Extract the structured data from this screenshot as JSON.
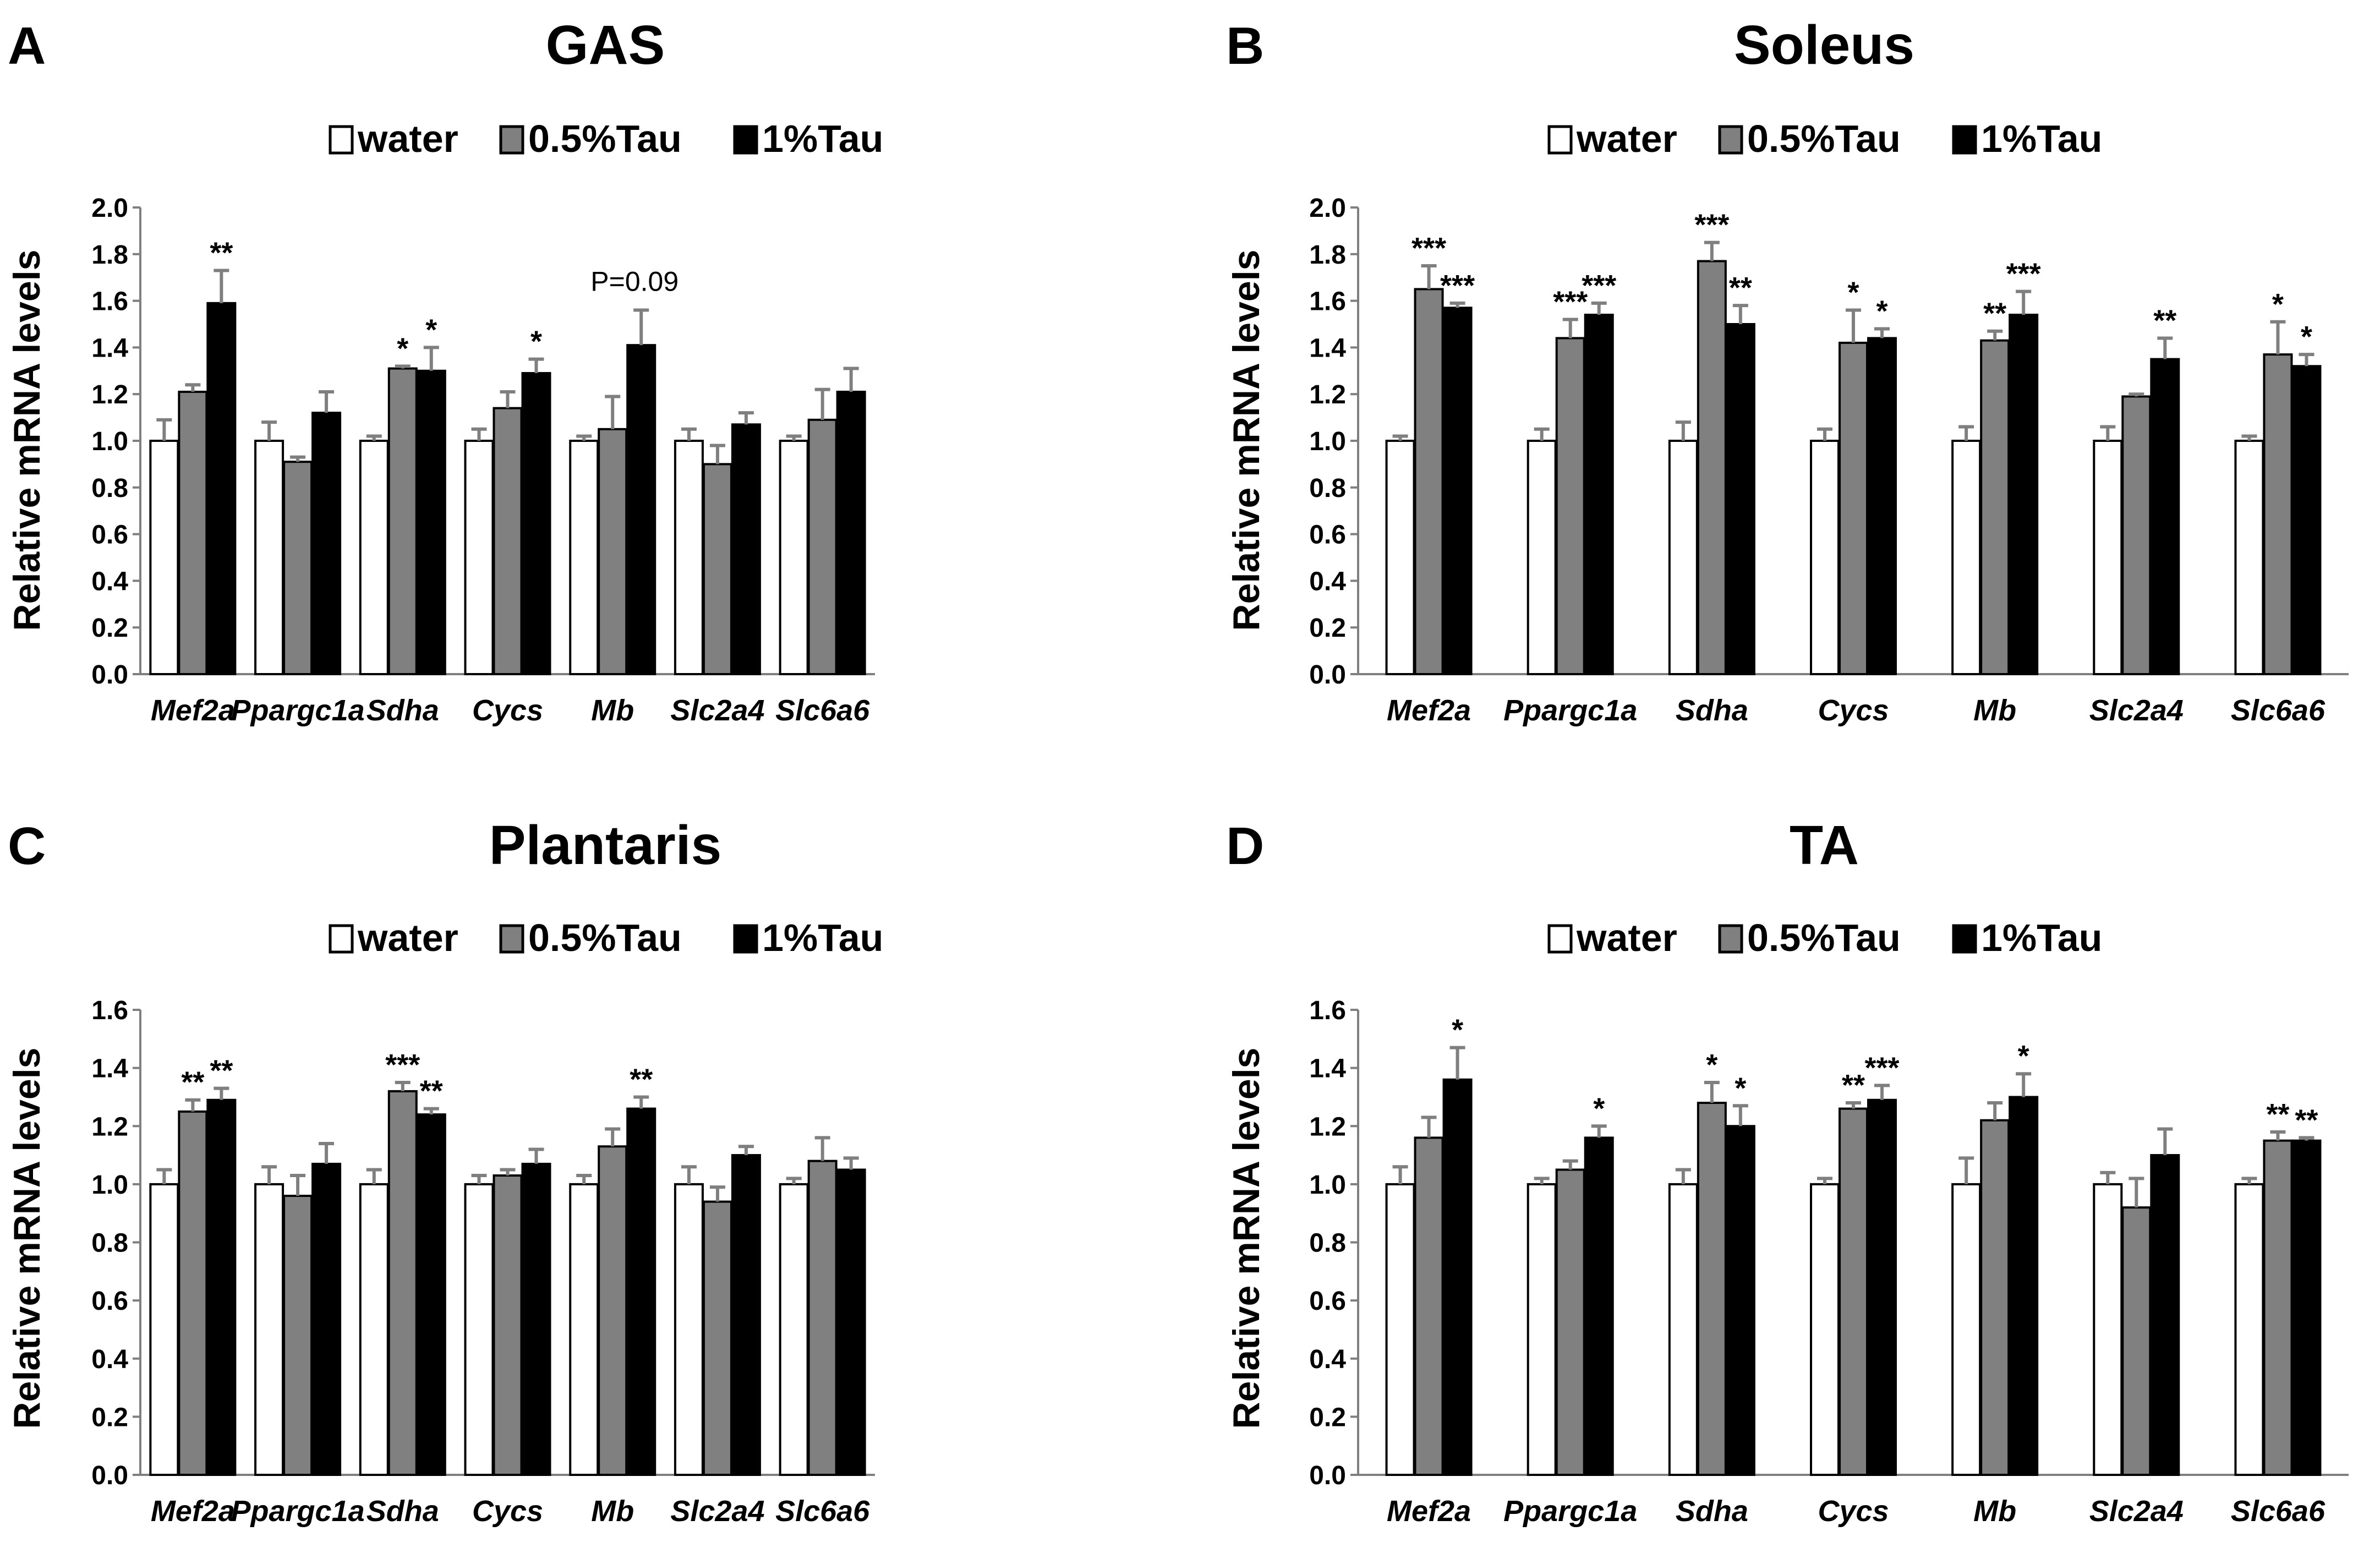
{
  "colors": {
    "water": "#ffffff",
    "tau05": "#808080",
    "tau1": "#000000",
    "errorbar": "#7f7f7f",
    "axis": "#7f7f7f"
  },
  "legend": {
    "water": "water",
    "tau05": "0.5%Tau",
    "tau1": "1%Tau"
  },
  "ylabel": "Relative mRNA levels",
  "chart_data": [
    {
      "type": "bar",
      "letter": "A",
      "title": "GAS",
      "ylabel": "Relative mRNA levels",
      "ylim": [
        0,
        2.0
      ],
      "yticks": [
        "0.0",
        "0.2",
        "0.4",
        "0.6",
        "0.8",
        "1.0",
        "1.2",
        "1.4",
        "1.6",
        "1.8",
        "2.0"
      ],
      "categories": [
        "Mef2a",
        "Ppargc1a",
        "Sdha",
        "Cycs",
        "Mb",
        "Slc2a4",
        "Slc6a6"
      ],
      "series": [
        {
          "name": "water",
          "values": [
            1.0,
            1.0,
            1.0,
            1.0,
            1.0,
            1.0,
            1.0
          ],
          "errors": [
            0.09,
            0.08,
            0.02,
            0.05,
            0.02,
            0.05,
            0.02
          ],
          "sig": [
            "",
            "",
            "",
            "",
            "",
            "",
            ""
          ]
        },
        {
          "name": "0.5%Tau",
          "values": [
            1.21,
            0.91,
            1.31,
            1.14,
            1.05,
            0.9,
            1.09
          ],
          "errors": [
            0.03,
            0.02,
            0.01,
            0.07,
            0.14,
            0.08,
            0.13
          ],
          "sig": [
            "",
            "",
            "*",
            "",
            "",
            "",
            ""
          ]
        },
        {
          "name": "1%Tau",
          "values": [
            1.59,
            1.12,
            1.3,
            1.29,
            1.41,
            1.07,
            1.21
          ],
          "errors": [
            0.14,
            0.09,
            0.1,
            0.06,
            0.15,
            0.05,
            0.1
          ],
          "sig": [
            "**",
            "",
            "*",
            "*",
            "",
            "",
            ""
          ]
        }
      ],
      "notes": [
        {
          "text": "P=0.09",
          "category": "Mb"
        }
      ]
    },
    {
      "type": "bar",
      "letter": "B",
      "title": "Soleus",
      "ylabel": "Relative mRNA levels",
      "ylim": [
        0,
        2.0
      ],
      "yticks": [
        "0.0",
        "0.2",
        "0.4",
        "0.6",
        "0.8",
        "1.0",
        "1.2",
        "1.4",
        "1.6",
        "1.8",
        "2.0"
      ],
      "categories": [
        "Mef2a",
        "Ppargc1a",
        "Sdha",
        "Cycs",
        "Mb",
        "Slc2a4",
        "Slc6a6"
      ],
      "series": [
        {
          "name": "water",
          "values": [
            1.0,
            1.0,
            1.0,
            1.0,
            1.0,
            1.0,
            1.0
          ],
          "errors": [
            0.02,
            0.05,
            0.08,
            0.05,
            0.06,
            0.06,
            0.02
          ],
          "sig": [
            "",
            "",
            "",
            "",
            "",
            "",
            ""
          ]
        },
        {
          "name": "0.5%Tau",
          "values": [
            1.65,
            1.44,
            1.77,
            1.42,
            1.43,
            1.19,
            1.37
          ],
          "errors": [
            0.1,
            0.08,
            0.08,
            0.14,
            0.04,
            0.01,
            0.14
          ],
          "sig": [
            "***",
            "***",
            "***",
            "*",
            "**",
            "",
            "*"
          ]
        },
        {
          "name": "1%Tau",
          "values": [
            1.57,
            1.54,
            1.5,
            1.44,
            1.54,
            1.35,
            1.32
          ],
          "errors": [
            0.02,
            0.05,
            0.08,
            0.04,
            0.1,
            0.09,
            0.05
          ],
          "sig": [
            "***",
            "***",
            "**",
            "*",
            "***",
            "**",
            "*"
          ]
        }
      ],
      "notes": []
    },
    {
      "type": "bar",
      "letter": "C",
      "title": "Plantaris",
      "ylabel": "Relative mRNA levels",
      "ylim": [
        0,
        1.6
      ],
      "yticks": [
        "0.0",
        "0.2",
        "0.4",
        "0.6",
        "0.8",
        "1.0",
        "1.2",
        "1.4",
        "1.6"
      ],
      "categories": [
        "Mef2a",
        "Ppargc1a",
        "Sdha",
        "Cycs",
        "Mb",
        "Slc2a4",
        "Slc6a6"
      ],
      "series": [
        {
          "name": "water",
          "values": [
            1.0,
            1.0,
            1.0,
            1.0,
            1.0,
            1.0,
            1.0
          ],
          "errors": [
            0.05,
            0.06,
            0.05,
            0.03,
            0.03,
            0.06,
            0.02
          ],
          "sig": [
            "",
            "",
            "",
            "",
            "",
            "",
            ""
          ]
        },
        {
          "name": "0.5%Tau",
          "values": [
            1.25,
            0.96,
            1.32,
            1.03,
            1.13,
            0.94,
            1.08
          ],
          "errors": [
            0.04,
            0.07,
            0.03,
            0.02,
            0.06,
            0.05,
            0.08
          ],
          "sig": [
            "**",
            "",
            "***",
            "",
            "",
            "",
            ""
          ]
        },
        {
          "name": "1%Tau",
          "values": [
            1.29,
            1.07,
            1.24,
            1.07,
            1.26,
            1.1,
            1.05
          ],
          "errors": [
            0.04,
            0.07,
            0.02,
            0.05,
            0.04,
            0.03,
            0.04
          ],
          "sig": [
            "**",
            "",
            "**",
            "",
            "**",
            "",
            ""
          ]
        }
      ],
      "notes": []
    },
    {
      "type": "bar",
      "letter": "D",
      "title": "TA",
      "ylabel": "Relative mRNA levels",
      "ylim": [
        0,
        1.6
      ],
      "yticks": [
        "0.0",
        "0.2",
        "0.4",
        "0.6",
        "0.8",
        "1.0",
        "1.2",
        "1.4",
        "1.6"
      ],
      "categories": [
        "Mef2a",
        "Ppargc1a",
        "Sdha",
        "Cycs",
        "Mb",
        "Slc2a4",
        "Slc6a6"
      ],
      "series": [
        {
          "name": "water",
          "values": [
            1.0,
            1.0,
            1.0,
            1.0,
            1.0,
            1.0,
            1.0
          ],
          "errors": [
            0.06,
            0.02,
            0.05,
            0.02,
            0.09,
            0.04,
            0.02
          ],
          "sig": [
            "",
            "",
            "",
            "",
            "",
            "",
            ""
          ]
        },
        {
          "name": "0.5%Tau",
          "values": [
            1.16,
            1.05,
            1.28,
            1.26,
            1.22,
            0.92,
            1.15
          ],
          "errors": [
            0.07,
            0.03,
            0.07,
            0.02,
            0.06,
            0.1,
            0.03
          ],
          "sig": [
            "",
            "",
            "*",
            "**",
            "",
            "",
            "**"
          ]
        },
        {
          "name": "1%Tau",
          "values": [
            1.36,
            1.16,
            1.2,
            1.29,
            1.3,
            1.1,
            1.15
          ],
          "errors": [
            0.11,
            0.04,
            0.07,
            0.05,
            0.08,
            0.09,
            0.01
          ],
          "sig": [
            "*",
            "*",
            "*",
            "***",
            "*",
            "",
            "**"
          ]
        }
      ],
      "notes": []
    }
  ]
}
